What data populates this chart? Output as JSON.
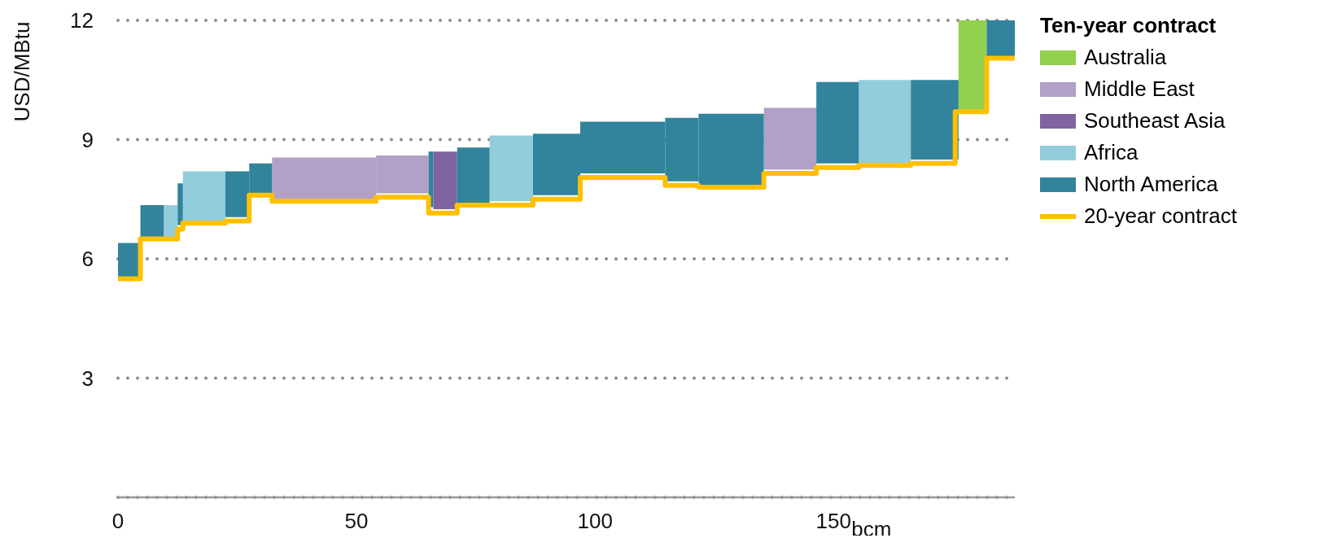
{
  "chart_data": {
    "type": "bar",
    "ylabel": "USD/MBtu",
    "xlabel": "bcm",
    "legend_title": "Ten-year contract",
    "legend": "right",
    "grid": "y",
    "xlim": [
      0,
      188
    ],
    "xticks": [
      0,
      50,
      100,
      150
    ],
    "ylim": [
      0,
      12
    ],
    "yticks": [
      3,
      6,
      9,
      12
    ],
    "series": [
      {
        "name": "Australia",
        "color": "#92d050",
        "x": [
          179.15
        ],
        "base": [
          9.75
        ],
        "values": [
          2.25
        ]
      },
      {
        "name": "Middle East",
        "color": "#b1a0c7",
        "x": [
          43.2,
          59.6,
          140.9
        ],
        "base": [
          7.5,
          7.65,
          8.25
        ],
        "values": [
          1.05,
          0.95,
          1.55
        ]
      },
      {
        "name": "Southeast Asia",
        "color": "#8064a2",
        "x": [
          68.6
        ],
        "base": [
          7.25
        ],
        "values": [
          1.45
        ]
      },
      {
        "name": "Africa",
        "color": "#92cddc",
        "x": [
          11.05,
          18.05,
          82.45,
          160.75
        ],
        "base": [
          6.55,
          6.95,
          7.45,
          8.4
        ],
        "values": [
          0.8,
          1.25,
          1.65,
          2.1
        ]
      },
      {
        "name": "North America",
        "color": "#31849b",
        "x": [
          2.35,
          7.15,
          13.05,
          25,
          29.9,
          65.6,
          74.5,
          91.95,
          105.8,
          118.2,
          128.55,
          150.85,
          171.2,
          185.05
        ],
        "base": [
          5.5,
          6.55,
          6.85,
          7.05,
          7.65,
          7.3,
          7.4,
          7.6,
          8.15,
          7.95,
          7.85,
          8.4,
          8.5,
          11.1
        ],
        "values": [
          0.9,
          0.8,
          1.05,
          1.15,
          0.75,
          1.4,
          1.4,
          1.55,
          1.3,
          1.6,
          1.8,
          2.05,
          2.0,
          0.9
        ]
      },
      {
        "name": "20-year contract",
        "type": "step",
        "color": "#ffc000",
        "x": [
          0,
          4.7,
          12.5,
          13.6,
          22.5,
          27.5,
          32.3,
          54.1,
          65.1,
          71.1,
          87.0,
          96.9,
          114.7,
          121.7,
          135.4,
          146.4,
          155.3,
          166.2,
          175.5,
          182.1,
          188
        ],
        "values": [
          5.5,
          6.5,
          6.75,
          6.9,
          6.95,
          7.6,
          7.45,
          7.55,
          7.15,
          7.35,
          7.5,
          8.05,
          7.85,
          7.8,
          8.15,
          8.3,
          8.35,
          8.4,
          9.7,
          11.05,
          11.05
        ]
      }
    ]
  }
}
